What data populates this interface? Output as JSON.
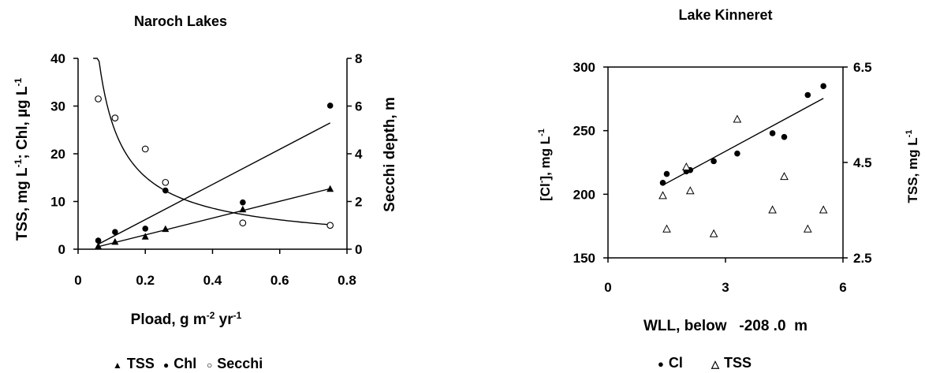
{
  "chart_data": [
    {
      "type": "scatter",
      "title": "Naroch Lakes",
      "xlabel": "Pload, g m-2 yr-1",
      "ylabel": "TSS, mg L-1; Chl, µg L-1",
      "y2label": "Secchi depth, m",
      "xlim": [
        0,
        0.8
      ],
      "ylim": [
        0,
        40
      ],
      "y2lim": [
        0,
        8
      ],
      "xticks": [
        "0",
        "0.2",
        "0.4",
        "0.6",
        "0.8"
      ],
      "yticks": [
        "0",
        "10",
        "20",
        "30",
        "40"
      ],
      "y2ticks": [
        "0",
        "2",
        "4",
        "6",
        "8"
      ],
      "grid": false,
      "legend_position": "bottom",
      "legend": [
        {
          "symbol": "▲",
          "label": "TSS"
        },
        {
          "symbol": "●",
          "label": "Chl"
        },
        {
          "symbol": "○",
          "label": "Secchi"
        }
      ],
      "series": [
        {
          "name": "TSS",
          "marker": "triangle-filled",
          "axis": "left",
          "x": [
            0.06,
            0.11,
            0.2,
            0.26,
            0.49,
            0.75
          ],
          "y": [
            0.6,
            1.5,
            2.6,
            4.2,
            8.3,
            12.6
          ]
        },
        {
          "name": "Chl",
          "marker": "circle-filled",
          "axis": "left",
          "x": [
            0.06,
            0.11,
            0.2,
            0.26,
            0.49,
            0.75
          ],
          "y": [
            1.8,
            3.6,
            4.3,
            12.3,
            9.8,
            30.1
          ]
        },
        {
          "name": "Secchi",
          "marker": "circle-open",
          "axis": "right",
          "x": [
            0.06,
            0.11,
            0.2,
            0.26,
            0.49,
            0.75
          ],
          "y": [
            6.3,
            5.5,
            4.2,
            2.8,
            1.1,
            1.0
          ]
        }
      ]
    },
    {
      "type": "scatter",
      "title": "Lake Kinneret",
      "xlabel": "WLL, below   -208 .0  m",
      "ylabel": "[Cl-], mg L-1",
      "y2label": "TSS, mg L-1",
      "xlim": [
        0,
        6
      ],
      "ylim": [
        150,
        300
      ],
      "y2lim": [
        2.5,
        6.5
      ],
      "xticks": [
        "0",
        "3",
        "6"
      ],
      "yticks": [
        "150",
        "200",
        "250",
        "300"
      ],
      "y2ticks": [
        "2.5",
        "4.5",
        "6.5"
      ],
      "grid": false,
      "legend_position": "bottom",
      "legend": [
        {
          "symbol": "●",
          "label": "Cl"
        },
        {
          "symbol": "△",
          "label": "TSS"
        }
      ],
      "series": [
        {
          "name": "Cl",
          "marker": "circle-filled",
          "axis": "left",
          "x": [
            1.4,
            1.5,
            2.0,
            2.1,
            2.7,
            3.3,
            4.2,
            4.5,
            5.1,
            5.5
          ],
          "y": [
            209,
            216,
            218,
            219,
            226,
            232,
            248,
            245,
            278,
            285
          ]
        },
        {
          "name": "TSS",
          "marker": "triangle-open",
          "axis": "right",
          "x": [
            1.4,
            1.5,
            2.0,
            2.1,
            2.7,
            3.3,
            4.2,
            4.5,
            5.1,
            5.5
          ],
          "y": [
            3.8,
            3.1,
            4.4,
            3.9,
            3.0,
            5.4,
            3.5,
            4.2,
            3.1,
            3.5
          ]
        }
      ]
    }
  ]
}
